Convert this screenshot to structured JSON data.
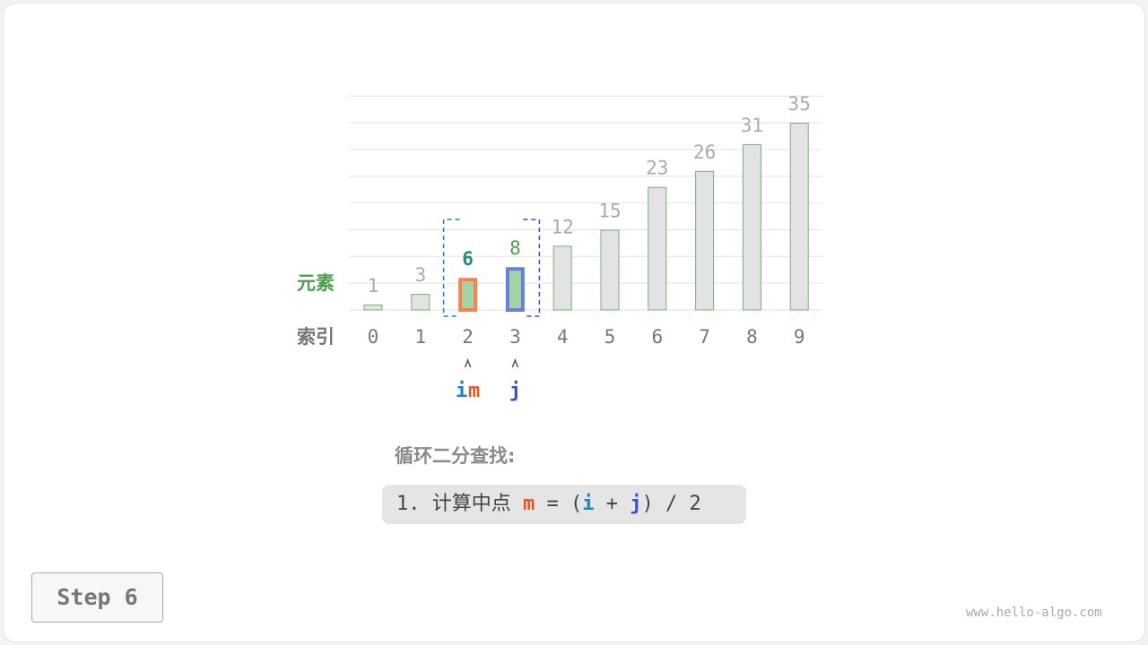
{
  "diagram": {
    "elements_label": "元素",
    "index_label": "索引",
    "values": [
      1,
      3,
      6,
      8,
      12,
      15,
      23,
      26,
      31,
      35
    ],
    "indices": [
      "0",
      "1",
      "2",
      "3",
      "4",
      "5",
      "6",
      "7",
      "8",
      "9"
    ],
    "pointer_i": "i",
    "pointer_m": "m",
    "pointer_j": "j",
    "i_index": 2,
    "m_index": 2,
    "j_index": 3,
    "colors": {
      "i": "#1b83c9",
      "m": "#e6551e",
      "j": "#3a4fcb",
      "bar_fill": "#e3e3e3",
      "bar_stroke": "#6fb56f",
      "active_fill": "#a6d3a6",
      "m_border": "#f5844f",
      "j_border": "#6a7fdc",
      "label_green": "#4f9d4f"
    }
  },
  "panel": {
    "title": "循环二分查找:",
    "step_number": "1.",
    "step_text": "计算中点",
    "m": "m",
    "eq": " = (",
    "i": "i",
    "plus": " + ",
    "j": "j",
    "tail": ") / 2"
  },
  "step_button": "Step 6",
  "watermark": "www.hello-algo.com"
}
